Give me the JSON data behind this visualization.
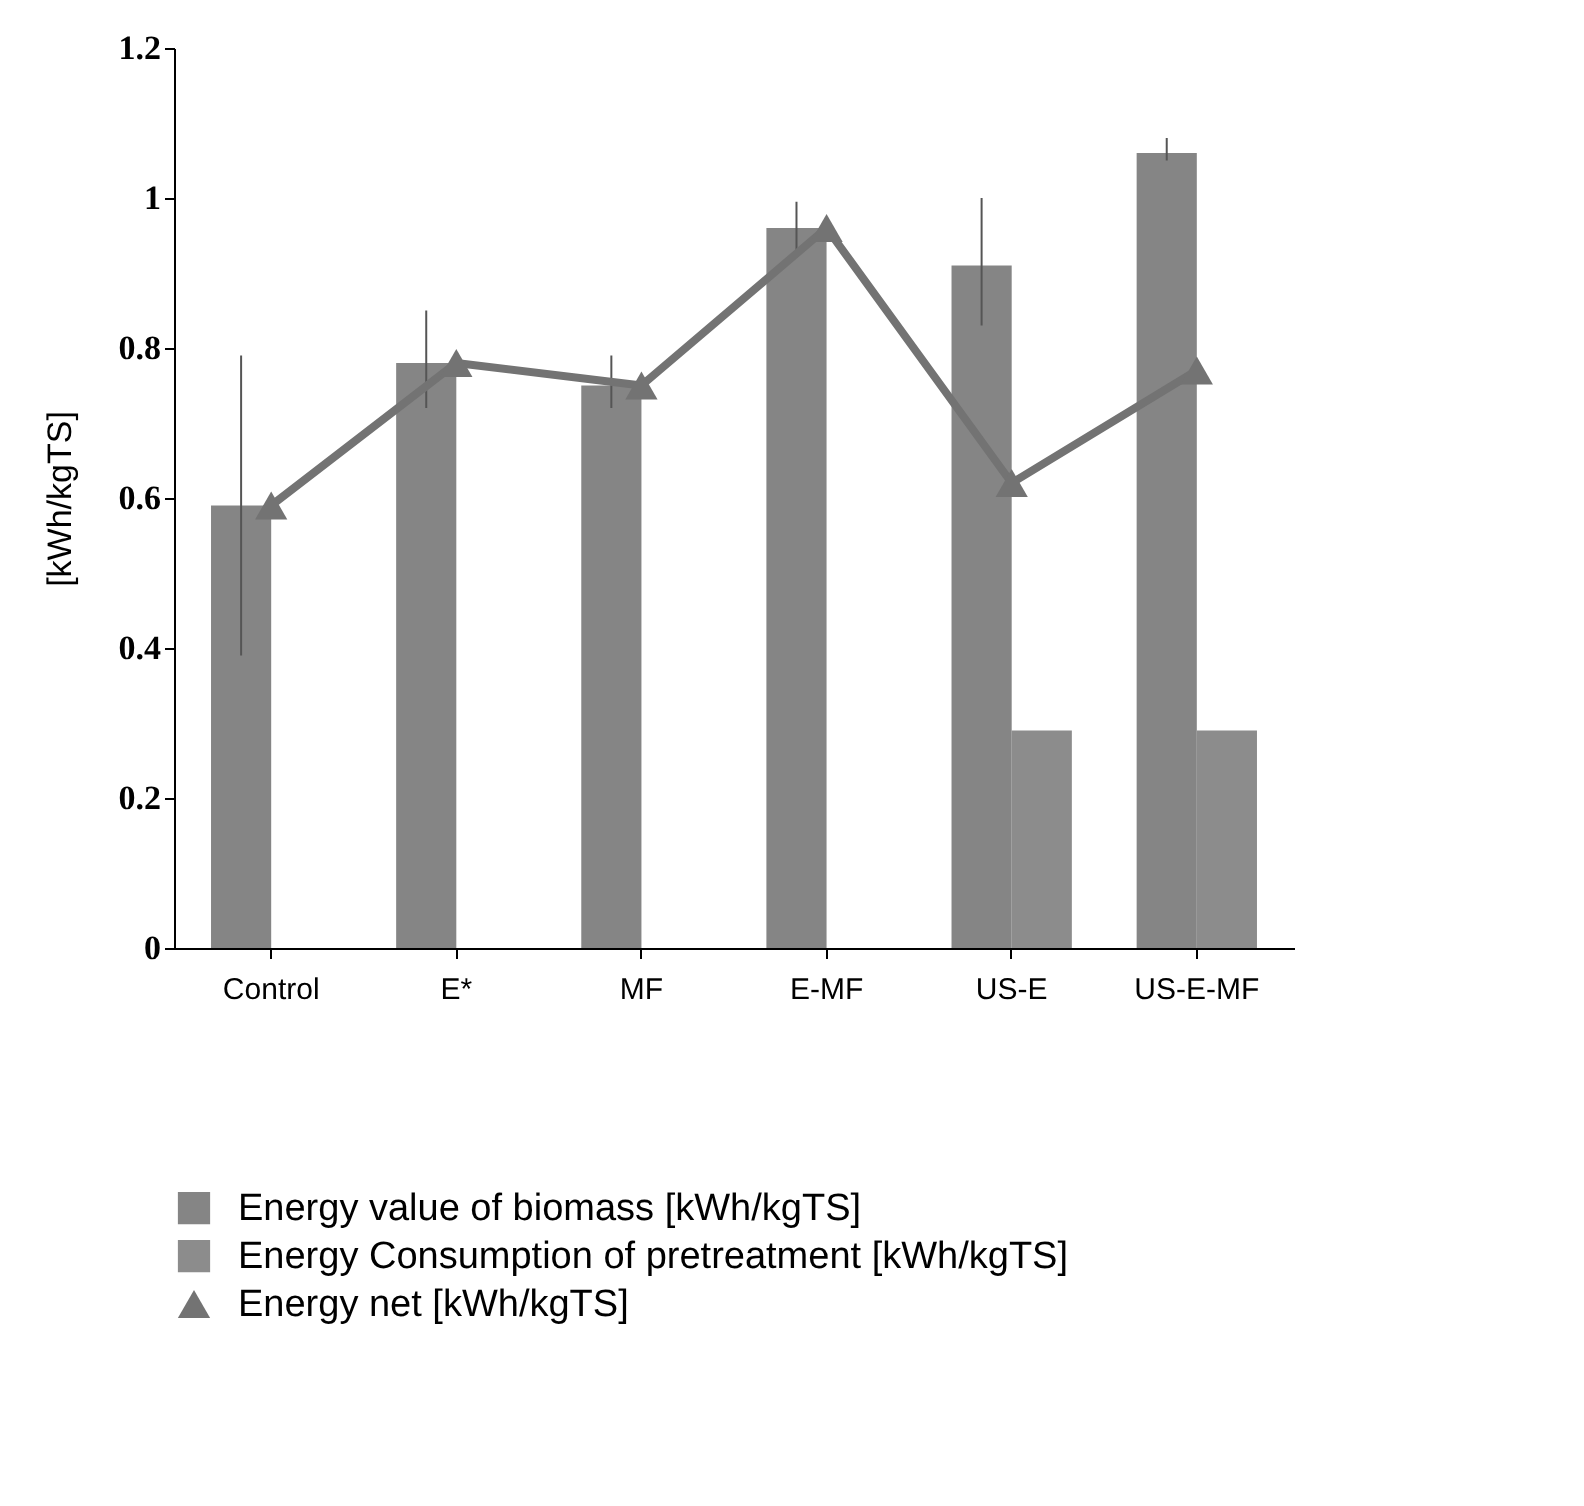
{
  "chart_data": {
    "type": "bar",
    "ylabel": "[kWh/kgTS]",
    "categories": [
      "Control",
      "E*",
      "MF",
      "E-MF",
      "US-E",
      "US-E-MF"
    ],
    "series": [
      {
        "name": "Energy value of biomass [kWh/kgTS]",
        "color": "#858585",
        "values": [
          0.59,
          0.78,
          0.75,
          0.96,
          0.91,
          1.06
        ],
        "errors": [
          [
            0.39,
            0.79
          ],
          [
            0.72,
            0.85
          ],
          [
            0.72,
            0.79
          ],
          [
            0.93,
            0.995
          ],
          [
            0.83,
            1.0
          ],
          [
            1.05,
            1.08
          ]
        ]
      },
      {
        "name": "Energy Consumption of pretreatment [kWh/kgTS]",
        "color": "#8c8c8c",
        "values": [
          null,
          null,
          null,
          null,
          0.29,
          0.29
        ]
      },
      {
        "name": "Energy net [kWh/kgTS]",
        "color": "#737373",
        "type": "line",
        "marker": "triangle",
        "values": [
          0.59,
          0.78,
          0.75,
          0.96,
          0.62,
          0.77
        ]
      }
    ],
    "ylim": [
      0,
      1.2
    ],
    "yticks": [
      0,
      0.2,
      0.4,
      0.6,
      0.8,
      1,
      1.2
    ],
    "grid": false,
    "legend": "bottom"
  }
}
